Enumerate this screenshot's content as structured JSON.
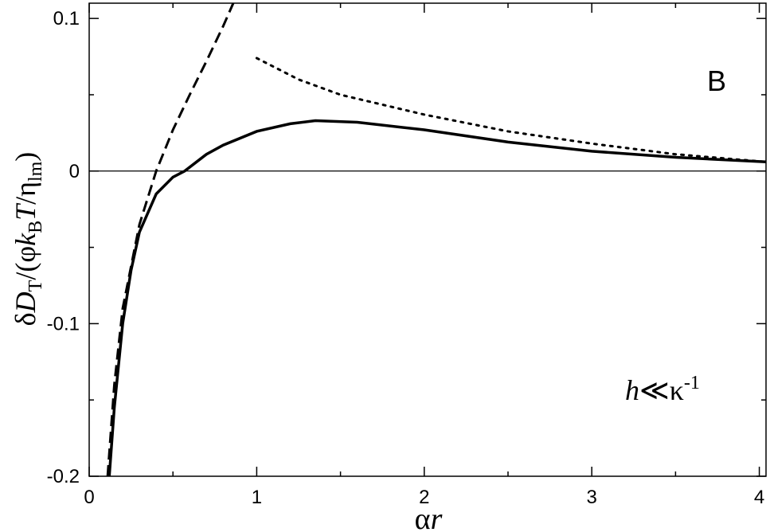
{
  "chart_data": {
    "type": "line",
    "xlabel": [
      "α",
      "r"
    ],
    "ylabel": [
      "δ",
      "D",
      "T",
      "/(φ",
      "k",
      "B",
      "T",
      "/η",
      "lm",
      ")"
    ],
    "annotations": [
      {
        "text": "B"
      },
      {
        "text": [
          "h",
          "≪",
          "κ",
          "-1"
        ]
      }
    ],
    "xlim": [
      0,
      4.04
    ],
    "ylim": [
      -0.2,
      0.11
    ],
    "xticks": [
      0,
      1,
      2,
      3,
      4
    ],
    "yticks": [
      -0.2,
      -0.1,
      0,
      0.1
    ],
    "xminorticks": [
      0.5,
      1.5,
      2.5,
      3.5
    ],
    "yminorticks": [
      -0.15,
      -0.05,
      0.05
    ],
    "hline": 0,
    "series": [
      {
        "color": "#000000",
        "dash": "solid",
        "x": [
          0.12,
          0.15,
          0.2,
          0.25,
          0.3,
          0.4,
          0.5,
          0.57,
          0.7,
          0.8,
          1.0,
          1.2,
          1.35,
          1.6,
          2.0,
          2.5,
          3.0,
          3.5,
          4.04
        ],
        "values": [
          -0.2,
          -0.155,
          -0.1,
          -0.065,
          -0.04,
          -0.015,
          -0.004,
          0,
          0.011,
          0.017,
          0.026,
          0.031,
          0.033,
          0.032,
          0.027,
          0.019,
          0.013,
          0.009,
          0.006
        ]
      },
      {
        "color": "#000000",
        "dash": "dashed",
        "x": [
          0.11,
          0.15,
          0.2,
          0.3,
          0.4,
          0.5,
          0.6,
          0.7,
          0.8,
          0.86
        ],
        "values": [
          -0.2,
          -0.14,
          -0.09,
          -0.035,
          0.0,
          0.027,
          0.05,
          0.072,
          0.095,
          0.11
        ]
      },
      {
        "color": "#000000",
        "dash": "dotted",
        "x": [
          1.0,
          1.25,
          1.5,
          2.0,
          2.5,
          3.0,
          3.5,
          4.04
        ],
        "values": [
          0.074,
          0.06,
          0.05,
          0.037,
          0.026,
          0.018,
          0.011,
          0.006
        ]
      }
    ]
  }
}
